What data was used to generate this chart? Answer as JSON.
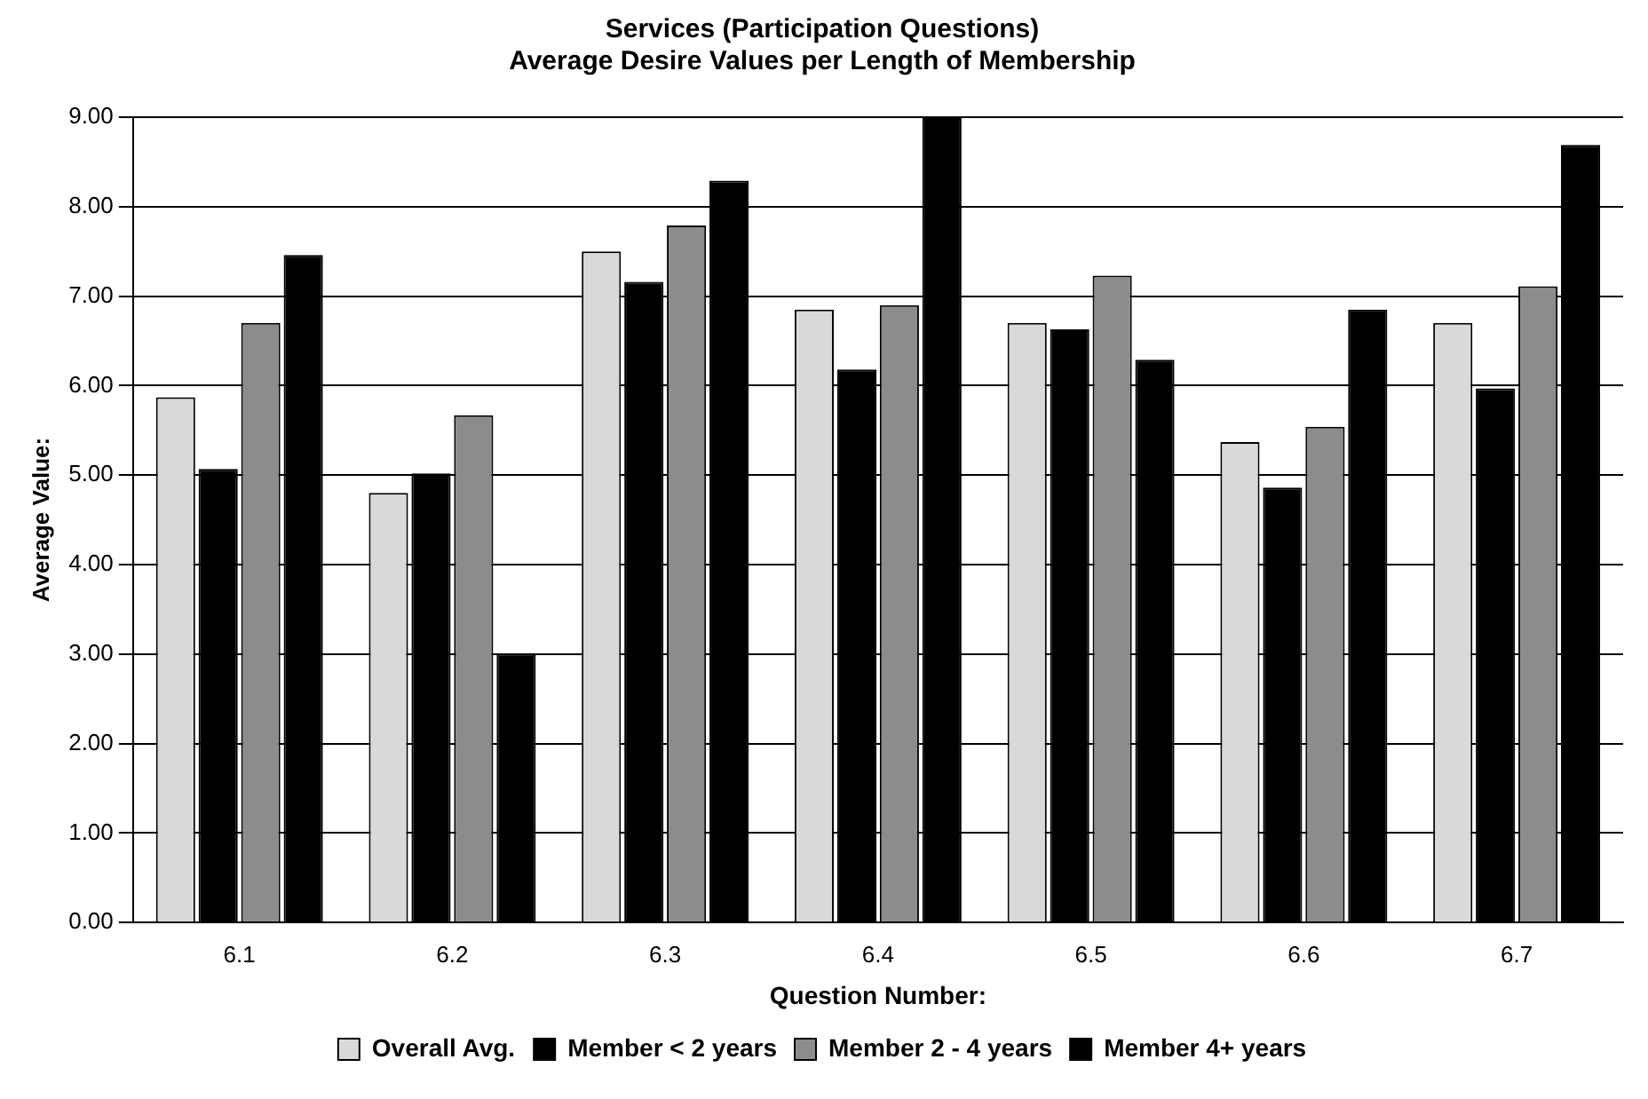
{
  "chart_data": {
    "type": "bar",
    "title": [
      "Services (Participation Questions)",
      "Average Desire Values per Length of Membership"
    ],
    "xlabel": "Question Number:",
    "ylabel": "Average Value:",
    "categories": [
      "6.1",
      "6.2",
      "6.3",
      "6.4",
      "6.5",
      "6.6",
      "6.7"
    ],
    "series": [
      {
        "name": "Overall Avg.",
        "color": "#d9d9d9",
        "values": [
          5.87,
          4.8,
          7.5,
          6.85,
          6.7,
          5.37,
          6.7
        ]
      },
      {
        "name": "Member < 2 years",
        "color": "#000000",
        "values": [
          5.07,
          5.02,
          7.16,
          6.18,
          6.63,
          4.86,
          5.97
        ]
      },
      {
        "name": "Member 2 - 4 years",
        "color": "#8c8c8c",
        "values": [
          6.7,
          5.67,
          7.79,
          6.9,
          7.23,
          5.54,
          7.11
        ]
      },
      {
        "name": "Member 4+ years",
        "color": "#000000",
        "values": [
          7.46,
          3.0,
          8.29,
          9.0,
          6.29,
          6.85,
          8.69
        ]
      }
    ],
    "ylim": [
      0,
      9
    ],
    "yticks": [
      {
        "value": 0,
        "label": "0.00"
      },
      {
        "value": 1,
        "label": "1.00"
      },
      {
        "value": 2,
        "label": "2.00"
      },
      {
        "value": 3,
        "label": "3.00"
      },
      {
        "value": 4,
        "label": "4.00"
      },
      {
        "value": 5,
        "label": "5.00"
      },
      {
        "value": 6,
        "label": "6.00"
      },
      {
        "value": 7,
        "label": "7.00"
      },
      {
        "value": 8,
        "label": "8.00"
      },
      {
        "value": 9,
        "label": "9.00"
      }
    ],
    "grid": "y",
    "legend": "bottom"
  }
}
